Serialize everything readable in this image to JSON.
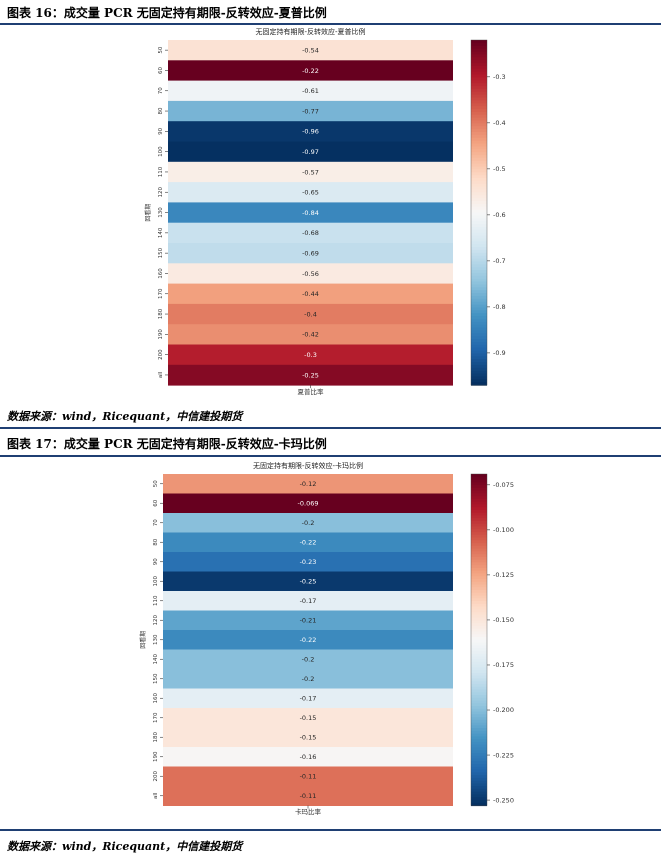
{
  "figures": [
    {
      "caption": "图表 16：成交量 PCR 无固定持有期限-反转效应-夏普比例",
      "source": "数据来源：wind，Ricequant，中信建投期货",
      "chart_data": {
        "type": "heatmap",
        "title": "无固定持有期限-反转效应-夏普比例",
        "xlabel": "",
        "ylabel": "回看期",
        "x_categories": [
          "夏普比率"
        ],
        "y_categories": [
          "50",
          "60",
          "70",
          "80",
          "90",
          "100",
          "110",
          "120",
          "130",
          "140",
          "150",
          "160",
          "170",
          "180",
          "190",
          "200",
          "all"
        ],
        "values": [
          -0.54,
          -0.22,
          -0.61,
          -0.77,
          -0.96,
          -0.97,
          -0.57,
          -0.65,
          -0.84,
          -0.68,
          -0.69,
          -0.56,
          -0.44,
          -0.4,
          -0.42,
          -0.3,
          -0.25
        ],
        "cell_labels": [
          "-0.54",
          "-0.22",
          "-0.61",
          "-0.77",
          "-0.96",
          "-0.97",
          "-0.57",
          "-0.65",
          "-0.84",
          "-0.68",
          "-0.69",
          "-0.56",
          "-0.44",
          "-0.4",
          "-0.42",
          "-0.3",
          "-0.25"
        ],
        "colormap": "RdBu_r",
        "color_range": [
          -0.97,
          -0.22
        ],
        "colorbar_ticks": [
          -0.3,
          -0.4,
          -0.5,
          -0.6,
          -0.7,
          -0.8,
          -0.9
        ],
        "colorbar_tick_labels": [
          "-0.3",
          "-0.4",
          "-0.5",
          "-0.6",
          "-0.7",
          "-0.8",
          "-0.9"
        ]
      }
    },
    {
      "caption": "图表 17：成交量 PCR 无固定持有期限-反转效应-卡玛比例",
      "source": "数据来源：wind，Ricequant，中信建投期货",
      "chart_data": {
        "type": "heatmap",
        "title": "无固定持有期限-反转效应-卡玛比例",
        "xlabel": "",
        "ylabel": "回看期",
        "x_categories": [
          "卡玛比率"
        ],
        "y_categories": [
          "50",
          "60",
          "70",
          "80",
          "90",
          "100",
          "110",
          "120",
          "130",
          "140",
          "150",
          "160",
          "170",
          "180",
          "190",
          "200",
          "all"
        ],
        "values": [
          -0.12,
          -0.069,
          -0.2,
          -0.22,
          -0.23,
          -0.25,
          -0.17,
          -0.21,
          -0.22,
          -0.2,
          -0.2,
          -0.17,
          -0.15,
          -0.15,
          -0.16,
          -0.11,
          -0.11
        ],
        "cell_labels": [
          "-0.12",
          "-0.069",
          "-0.2",
          "-0.22",
          "-0.23",
          "-0.25",
          "-0.17",
          "-0.21",
          "-0.22",
          "-0.2",
          "-0.2",
          "-0.17",
          "-0.15",
          "-0.15",
          "-0.16",
          "-0.11",
          "-0.11"
        ],
        "colormap": "RdBu_r",
        "color_range": [
          -0.253,
          -0.069
        ],
        "colorbar_ticks": [
          -0.075,
          -0.1,
          -0.125,
          -0.15,
          -0.175,
          -0.2,
          -0.225,
          -0.25
        ],
        "colorbar_tick_labels": [
          "-0.075",
          "-0.100",
          "-0.125",
          "-0.150",
          "-0.175",
          "-0.200",
          "-0.225",
          "-0.250"
        ]
      }
    }
  ]
}
